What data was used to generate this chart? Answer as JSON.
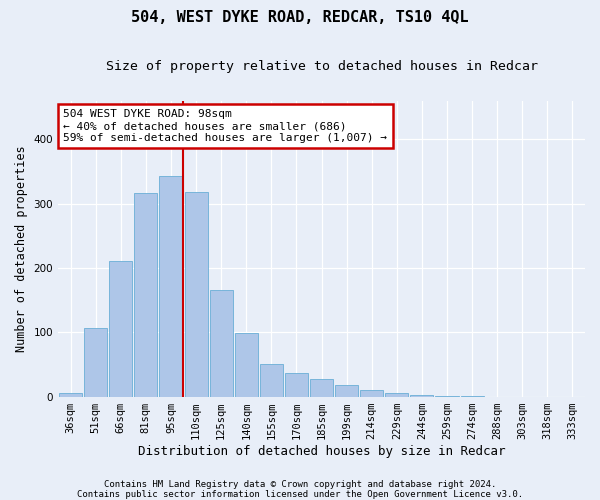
{
  "title": "504, WEST DYKE ROAD, REDCAR, TS10 4QL",
  "subtitle": "Size of property relative to detached houses in Redcar",
  "xlabel": "Distribution of detached houses by size in Redcar",
  "ylabel": "Number of detached properties",
  "categories": [
    "36sqm",
    "51sqm",
    "66sqm",
    "81sqm",
    "95sqm",
    "110sqm",
    "125sqm",
    "140sqm",
    "155sqm",
    "170sqm",
    "185sqm",
    "199sqm",
    "214sqm",
    "229sqm",
    "244sqm",
    "259sqm",
    "274sqm",
    "288sqm",
    "303sqm",
    "318sqm",
    "333sqm"
  ],
  "values": [
    5,
    107,
    211,
    317,
    343,
    318,
    165,
    99,
    51,
    37,
    28,
    18,
    10,
    5,
    3,
    1,
    1,
    0,
    0,
    0,
    0
  ],
  "bar_color": "#aec6e8",
  "bar_edgecolor": "#6aaed6",
  "annotation_text": "504 WEST DYKE ROAD: 98sqm\n← 40% of detached houses are smaller (686)\n59% of semi-detached houses are larger (1,007) →",
  "annotation_box_color": "#ffffff",
  "annotation_box_edgecolor": "#cc0000",
  "vline_color": "#cc0000",
  "vline_bar_index": 4,
  "footer_line1": "Contains HM Land Registry data © Crown copyright and database right 2024.",
  "footer_line2": "Contains public sector information licensed under the Open Government Licence v3.0.",
  "ylim": [
    0,
    460
  ],
  "background_color": "#e8eef8",
  "grid_color": "#ffffff",
  "title_fontsize": 11,
  "subtitle_fontsize": 9.5,
  "tick_fontsize": 7.5,
  "ylabel_fontsize": 8.5,
  "xlabel_fontsize": 9
}
